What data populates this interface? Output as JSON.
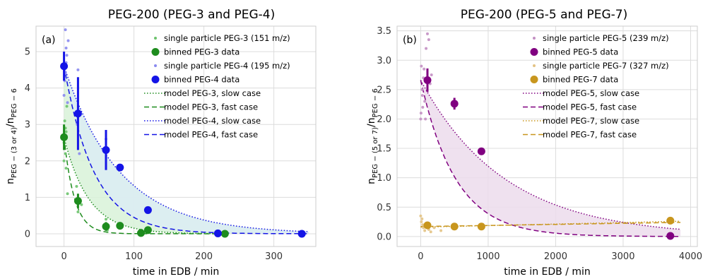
{
  "colors": {
    "peg3": "#1e8c1e",
    "peg3_light": "#6cc36c",
    "peg4": "#1414e6",
    "peg4_light": "#8a8af0",
    "peg5": "#800080",
    "peg5_light": "#c38fc3",
    "peg7": "#c8961e",
    "peg7_light": "#e3c384",
    "fill_a3": "#d8f2d8",
    "fill_a4": "#dcecf4",
    "fill_b5": "#ecdcec",
    "grid": "#dcdcdc",
    "frame": "#cccccc"
  },
  "chart_data": [
    {
      "type": "scatter",
      "panel_label": "(a)",
      "title": "PEG-200 (PEG-3 and PEG-4)",
      "xlabel": "time in EDB / min",
      "ylabel_main": "n",
      "ylabel_num_sub": "PEG − (3 or 4)",
      "ylabel_den_sub": "PEG − 6",
      "xlim": [
        -40,
        360
      ],
      "ylim": [
        -0.35,
        5.7
      ],
      "xticks": [
        0,
        100,
        200,
        300
      ],
      "yticks": [
        0,
        1,
        2,
        3,
        4,
        5
      ],
      "grid": true,
      "legend_position": "top-right",
      "legend": [
        {
          "label": "single particle PEG-3 (151 m/z)",
          "kind": "small-dot",
          "color_key": "peg3_light"
        },
        {
          "label": "binned PEG-3 data",
          "kind": "big-dot",
          "color_key": "peg3"
        },
        {
          "label": "single particle PEG-4 (195 m/z)",
          "kind": "small-dot",
          "color_key": "peg4_light"
        },
        {
          "label": "binned PEG-4 data",
          "kind": "big-dot",
          "color_key": "peg4"
        },
        {
          "label": "model PEG-3, slow case",
          "kind": "dotted",
          "color_key": "peg3"
        },
        {
          "label": "model PEG-3, fast case",
          "kind": "dashed",
          "color_key": "peg3"
        },
        {
          "label": "model PEG-4, slow case",
          "kind": "dotted",
          "color_key": "peg4"
        },
        {
          "label": "model PEG-4, fast case",
          "kind": "dashed",
          "color_key": "peg4"
        }
      ],
      "single_particle": [
        {
          "name": "PEG-3",
          "color_key": "peg3_light",
          "points": [
            [
              0,
              2.5
            ],
            [
              1,
              3.1
            ],
            [
              2,
              2.2
            ],
            [
              3,
              2.8
            ],
            [
              0,
              2.0
            ],
            [
              4,
              3.5
            ],
            [
              3,
              1.8
            ],
            [
              1,
              2.6
            ],
            [
              2,
              2.9
            ],
            [
              5,
              1.1
            ],
            [
              18,
              1.3
            ],
            [
              20,
              0.6
            ],
            [
              22,
              0.9
            ],
            [
              25,
              0.8
            ],
            [
              58,
              0.2
            ],
            [
              60,
              0.4
            ],
            [
              62,
              0.1
            ],
            [
              80,
              0.15
            ],
            [
              110,
              0.1
            ],
            [
              120,
              0.05
            ]
          ]
        },
        {
          "name": "PEG-4",
          "color_key": "peg4_light",
          "points": [
            [
              1,
              4.2
            ],
            [
              2,
              5.6
            ],
            [
              3,
              5.1
            ],
            [
              4,
              4.9
            ],
            [
              0,
              3.8
            ],
            [
              3,
              4.7
            ],
            [
              5,
              3.6
            ],
            [
              6,
              5.3
            ],
            [
              2,
              4.4
            ],
            [
              20,
              4.5
            ],
            [
              22,
              2.2
            ],
            [
              19,
              3.0
            ],
            [
              60,
              2.6
            ],
            [
              62,
              2.3
            ],
            [
              80,
              1.8
            ],
            [
              120,
              0.7
            ],
            [
              122,
              0.6
            ]
          ]
        }
      ],
      "binned": [
        {
          "name": "PEG-3",
          "color_key": "peg3",
          "points": [
            [
              0,
              2.65,
              0.35
            ],
            [
              20,
              0.9,
              0.2
            ],
            [
              60,
              0.2,
              0.12
            ],
            [
              80,
              0.22,
              0
            ],
            [
              110,
              0.02,
              0
            ],
            [
              120,
              0.1,
              0
            ],
            [
              230,
              0.0,
              0
            ]
          ]
        },
        {
          "name": "PEG-4",
          "color_key": "peg4",
          "points": [
            [
              0,
              4.6,
              0.4
            ],
            [
              20,
              3.3,
              1.0
            ],
            [
              60,
              2.3,
              0.55
            ],
            [
              80,
              1.82,
              0
            ],
            [
              120,
              0.65,
              0.1
            ],
            [
              220,
              0.01,
              0
            ],
            [
              340,
              0.0,
              0
            ]
          ]
        }
      ],
      "models": [
        {
          "name": "model PEG-3, slow case",
          "color_key": "peg3",
          "style": "dotted",
          "A": 2.65,
          "tau": 35,
          "x0": 0,
          "x1": 230
        },
        {
          "name": "model PEG-3, fast case",
          "color_key": "peg3",
          "style": "dashed",
          "A": 2.65,
          "tau": 15,
          "x0": 0,
          "x1": 230
        },
        {
          "name": "model PEG-4, slow case",
          "color_key": "peg4",
          "style": "dotted",
          "A": 4.6,
          "tau": 80,
          "x0": 0,
          "x1": 350
        },
        {
          "name": "model PEG-4, fast case",
          "color_key": "peg4",
          "style": "dashed",
          "A": 4.6,
          "tau": 43,
          "x0": 0,
          "x1": 350
        }
      ],
      "bands": [
        {
          "fill_key": "fill_a3",
          "slow": 2,
          "fast": 0,
          "note": ""
        },
        {
          "fill_key": "fill_a4",
          "slow": 2,
          "fast": 3
        }
      ]
    },
    {
      "type": "scatter",
      "panel_label": "(b)",
      "title": "PEG-200 (PEG-5 and PEG-7)",
      "xlabel": "time in EDB / min",
      "ylabel_main": "n",
      "ylabel_num_sub": "PEG − (5 or 7)",
      "ylabel_den_sub": "PEG − 6",
      "xlim": [
        -350,
        4100
      ],
      "ylim": [
        -0.17,
        3.58
      ],
      "xticks": [
        0,
        1000,
        2000,
        3000,
        4000
      ],
      "yticks": [
        0.0,
        0.5,
        1.0,
        1.5,
        2.0,
        2.5,
        3.0,
        3.5
      ],
      "grid": true,
      "legend_position": "top-right",
      "legend": [
        {
          "label": "single particle PEG-5 (239 m/z)",
          "kind": "small-dot",
          "color_key": "peg5_light"
        },
        {
          "label": "binned PEG-5 data",
          "kind": "big-dot",
          "color_key": "peg5"
        },
        {
          "label": "single particle PEG-7 (327 m/z)",
          "kind": "small-dot",
          "color_key": "peg7_light"
        },
        {
          "label": "binned PEG-7 data",
          "kind": "big-dot",
          "color_key": "peg7"
        },
        {
          "label": "model PEG-5, slow case",
          "kind": "dotted",
          "color_key": "peg5"
        },
        {
          "label": "model PEG-5, fast case",
          "kind": "dashed",
          "color_key": "peg5"
        },
        {
          "label": "model PEG-7, slow case",
          "kind": "dotted",
          "color_key": "peg7"
        },
        {
          "label": "model PEG-7, fast case",
          "kind": "dashed",
          "color_key": "peg7"
        }
      ],
      "single_particle": [
        {
          "name": "PEG-5",
          "color_key": "peg5_light",
          "points": [
            [
              0,
              2.0
            ],
            [
              10,
              2.9
            ],
            [
              20,
              2.5
            ],
            [
              30,
              2.2
            ],
            [
              40,
              2.7
            ],
            [
              50,
              2.85
            ],
            [
              60,
              2.3
            ],
            [
              80,
              3.2
            ],
            [
              100,
              3.45
            ],
            [
              120,
              3.35
            ],
            [
              140,
              2.6
            ],
            [
              160,
              2.75
            ],
            [
              5,
              2.1
            ],
            [
              25,
              2.4
            ],
            [
              70,
              2.0
            ]
          ]
        },
        {
          "name": "PEG-7",
          "color_key": "peg7_light",
          "points": [
            [
              0,
              0.35
            ],
            [
              10,
              0.25
            ],
            [
              20,
              0.3
            ],
            [
              30,
              0.2
            ],
            [
              40,
              0.15
            ],
            [
              60,
              0.1
            ],
            [
              90,
              0.22
            ],
            [
              120,
              0.12
            ],
            [
              150,
              0.08
            ],
            [
              200,
              0.15
            ],
            [
              300,
              0.1
            ]
          ]
        }
      ],
      "binned": [
        {
          "name": "PEG-5",
          "color_key": "peg5",
          "points": [
            [
              100,
              2.66,
              0.2
            ],
            [
              500,
              2.26,
              0.1
            ],
            [
              900,
              1.45,
              0
            ],
            [
              3700,
              0.01,
              0
            ]
          ]
        },
        {
          "name": "PEG-7",
          "color_key": "peg7",
          "points": [
            [
              100,
              0.19,
              0.05
            ],
            [
              500,
              0.17,
              0
            ],
            [
              900,
              0.17,
              0
            ],
            [
              3700,
              0.27,
              0
            ]
          ]
        }
      ],
      "models": [
        {
          "name": "model PEG-5, slow case",
          "color_key": "peg5",
          "style": "dotted",
          "A": 2.66,
          "tau": 1250,
          "x0": 0,
          "x1": 3850
        },
        {
          "name": "model PEG-5, fast case",
          "color_key": "peg5",
          "style": "dashed",
          "A": 2.66,
          "tau": 520,
          "x0": 0,
          "x1": 3850
        },
        {
          "name": "model PEG-7, slow case",
          "color_key": "peg7",
          "style": "dotted",
          "linear": [
            0.16,
            0.26
          ],
          "x0": 0,
          "x1": 3850
        },
        {
          "name": "model PEG-7, fast case",
          "color_key": "peg7",
          "style": "dashed",
          "linear": [
            0.17,
            0.24
          ],
          "x0": 0,
          "x1": 3850
        }
      ],
      "bands": [
        {
          "fill_key": "fill_b5",
          "slow": 0,
          "fast": 1
        }
      ]
    }
  ]
}
